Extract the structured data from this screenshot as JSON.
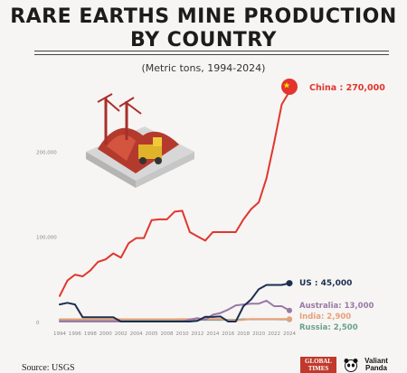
{
  "header": {
    "title_line1": "RARE EARTHS MINE PRODUCTION",
    "title_line2": "BY COUNTRY",
    "subtitle": "(Metric tons, 1994-2024)"
  },
  "footer": {
    "source": "Source: USGS",
    "logo_global_times": "GLOBAL TIMES",
    "logo_valiant_panda": "Valiant Panda"
  },
  "colors": {
    "china": "#e2352e",
    "us": "#1c2f4f",
    "australia": "#9a78a6",
    "india": "#e8a07a",
    "russia": "#6b9f90",
    "axis_text": "#888888"
  },
  "chart_data": {
    "type": "line",
    "title": "RARE EARTHS MINE PRODUCTION BY COUNTRY",
    "subtitle": "(Metric tons, 1994-2024)",
    "xlabel": "",
    "ylabel": "",
    "x": [
      1994,
      1995,
      1996,
      1997,
      1998,
      1999,
      2000,
      2001,
      2002,
      2003,
      2004,
      2005,
      2006,
      2007,
      2008,
      2009,
      2010,
      2011,
      2012,
      2013,
      2014,
      2015,
      2016,
      2017,
      2018,
      2019,
      2020,
      2021,
      2022,
      2023,
      2024
    ],
    "x_ticks": [
      "1994",
      "1996",
      "1998",
      "2000",
      "2002",
      "2004",
      "2005",
      "2008",
      "2010",
      "2012",
      "2014",
      "2016",
      "2018",
      "2020",
      "2022",
      "2024"
    ],
    "y_ticks": [
      {
        "value": 0,
        "label": "0"
      },
      {
        "value": 100000,
        "label": "100,000"
      },
      {
        "value": 200000,
        "label": "200,000"
      }
    ],
    "ylim": [
      0,
      280000
    ],
    "grid": false,
    "series": [
      {
        "name": "China",
        "end_label": "China : 270,000",
        "color": "#e2352e",
        "values": [
          30000,
          48000,
          55000,
          53000,
          60000,
          70000,
          73000,
          80000,
          75000,
          92000,
          98000,
          98000,
          119000,
          120000,
          120000,
          129000,
          130000,
          105000,
          100000,
          95000,
          105000,
          105000,
          105000,
          105000,
          120000,
          132000,
          140000,
          168000,
          210000,
          255000,
          270000
        ]
      },
      {
        "name": "US",
        "end_label": "US : 45,000",
        "color": "#1c2f4f",
        "values": [
          20000,
          22000,
          20000,
          5000,
          5000,
          5000,
          5000,
          5000,
          0,
          0,
          0,
          0,
          0,
          0,
          0,
          0,
          0,
          0,
          800,
          5500,
          5400,
          5900,
          0,
          0,
          18000,
          26000,
          38000,
          43000,
          43000,
          43000,
          45000
        ]
      },
      {
        "name": "Australia",
        "end_label": "Australia: 13,000",
        "color": "#9a78a6",
        "values": [
          0,
          0,
          0,
          0,
          0,
          0,
          0,
          0,
          0,
          0,
          0,
          0,
          0,
          0,
          0,
          0,
          0,
          2200,
          4000,
          2000,
          8000,
          10000,
          14000,
          19000,
          20000,
          21000,
          21000,
          24500,
          18000,
          18000,
          13000
        ]
      },
      {
        "name": "India",
        "end_label": "India: 2,900",
        "color": "#e8a07a",
        "values": [
          2700,
          2700,
          2700,
          2700,
          2700,
          2700,
          2700,
          2700,
          2700,
          2700,
          2700,
          2700,
          2700,
          2700,
          2700,
          2700,
          2800,
          2800,
          2900,
          2900,
          2900,
          2900,
          1500,
          1500,
          2000,
          2900,
          2900,
          2900,
          2900,
          2900,
          2900
        ]
      },
      {
        "name": "Russia",
        "end_label": "Russia: 2,500",
        "color": "#6b9f90",
        "values": [
          2000,
          2000,
          2000,
          2000,
          2000,
          2000,
          2000,
          2000,
          2000,
          2000,
          2000,
          2000,
          2000,
          2000,
          2000,
          2000,
          2000,
          2000,
          2000,
          2000,
          2000,
          2000,
          2000,
          2000,
          2600,
          2700,
          2700,
          2600,
          2600,
          2500,
          2500
        ]
      }
    ]
  }
}
